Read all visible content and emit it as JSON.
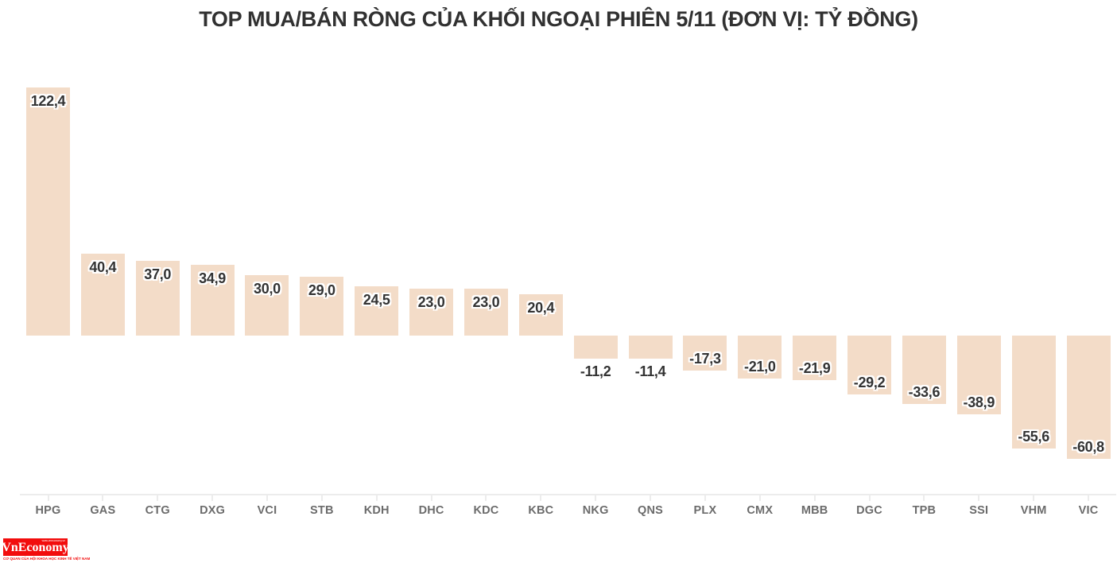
{
  "title": "TOP MUA/BÁN RÒNG CỦA KHỐI NGOẠI PHIÊN 5/11 (ĐƠN VỊ: TỶ ĐỒNG)",
  "chart_data": {
    "type": "bar",
    "title": "TOP MUA/BÁN RÒNG CỦA KHỐI NGOẠI PHIÊN 5/11 (ĐƠN VỊ: TỶ ĐỒNG)",
    "unit": "TỶ ĐỒNG",
    "categories": [
      "HPG",
      "GAS",
      "CTG",
      "DXG",
      "VCI",
      "STB",
      "KDH",
      "DHC",
      "KDC",
      "KBC",
      "NKG",
      "QNS",
      "PLX",
      "CMX",
      "MBB",
      "DGC",
      "TPB",
      "SSI",
      "VHM",
      "VIC"
    ],
    "values": [
      122.4,
      40.4,
      37.0,
      34.9,
      30.0,
      29.0,
      24.5,
      23.0,
      23.0,
      20.4,
      -11.2,
      -11.4,
      -17.3,
      -21.0,
      -21.9,
      -29.2,
      -33.6,
      -38.9,
      -55.6,
      -60.8
    ],
    "value_labels": [
      "122,4",
      "40,4",
      "37,0",
      "34,9",
      "30,0",
      "29,0",
      "24,5",
      "23,0",
      "23,0",
      "20,4",
      "-11,2",
      "-11,4",
      "-17,3",
      "-21,0",
      "-21,9",
      "-29,2",
      "-33,6",
      "-38,9",
      "-55,6",
      "-60,8"
    ],
    "xlabel": "",
    "ylabel": "",
    "grid": false,
    "legend": false,
    "bar_color": "#f3dcc8",
    "value_label_color": "#333333",
    "axis_label_color": "#6b6b6b",
    "axis_line_color": "#ececec",
    "background_color": "#ffffff"
  },
  "logo": {
    "text": "VnEconomy",
    "site": "www.vneconomy.vn",
    "tagline": "CƠ QUAN CỦA HỘI KHOA HỌC KINH TẾ VIỆT NAM",
    "bg_color": "#f20d0d",
    "text_color": "#ffffff"
  }
}
